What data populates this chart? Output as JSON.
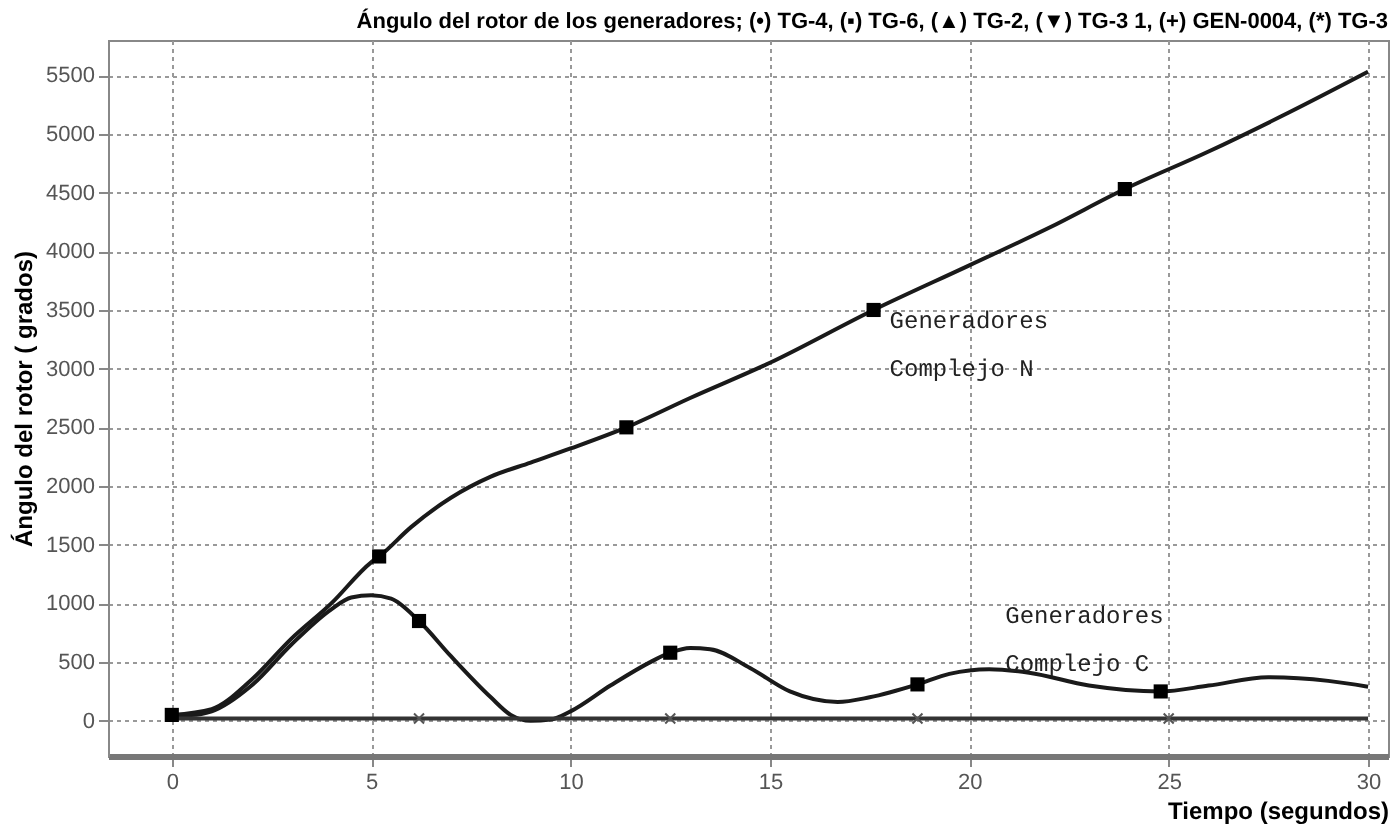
{
  "chart_data": {
    "type": "line",
    "title": "Ángulo del rotor de los generadores; (•) TG-4, (▪) TG-6, (▲) TG-2, (▼) TG-3  1, (+) GEN-0004, (*) TG-3",
    "xlabel": "Tiempo (segundos)",
    "ylabel": "Ángulo del rotor ( grados)",
    "xlim": [
      -1.6,
      30.5
    ],
    "ylim": [
      -300,
      5800
    ],
    "xticks": [
      0,
      5,
      10,
      15,
      20,
      25,
      30
    ],
    "yticks": [
      0,
      500,
      1000,
      1500,
      2000,
      2500,
      3000,
      3500,
      4000,
      4500,
      5000,
      5500
    ],
    "grid": true,
    "line_style": "solid",
    "marker": "none",
    "series": [
      {
        "color": "#1a1a1a",
        "x": [
          0,
          1,
          2,
          3,
          4,
          5,
          5.2,
          6,
          7,
          8,
          9,
          10,
          11.4,
          13,
          15,
          17.6,
          20,
          22,
          23.9,
          26,
          28,
          30
        ],
        "values": [
          50,
          100,
          350,
          700,
          1000,
          1350,
          1400,
          1650,
          1900,
          2080,
          2200,
          2320,
          2500,
          2750,
          3050,
          3500,
          3880,
          4200,
          4530,
          4850,
          5180,
          5530
        ]
      },
      {
        "color": "#1a1a1a",
        "x": [
          0,
          0.5,
          1,
          2,
          3,
          4,
          4.5,
          5,
          5.5,
          6.2,
          7,
          8,
          8.5,
          9,
          9.5,
          10,
          11,
          12,
          12.5,
          13,
          13.5,
          14.5,
          15.5,
          16.7,
          17.5,
          18.7,
          19.5,
          20.5,
          21.5,
          23,
          24.8,
          26,
          27.5,
          29,
          30
        ],
        "values": [
          50,
          50,
          80,
          300,
          650,
          950,
          1050,
          1070,
          1040,
          850,
          550,
          200,
          50,
          0,
          10,
          80,
          300,
          500,
          580,
          620,
          610,
          450,
          250,
          160,
          200,
          310,
          400,
          440,
          410,
          300,
          250,
          300,
          370,
          340,
          290
        ]
      },
      {
        "color": "#333333",
        "x": [
          0,
          30
        ],
        "values": [
          20,
          20
        ]
      },
      {
        "type": "scatter",
        "marker": "square",
        "color": "#000000",
        "x": [
          0,
          5.2,
          11.4,
          17.6,
          23.9
        ],
        "values": [
          50,
          1400,
          2500,
          3500,
          4530
        ]
      },
      {
        "type": "scatter",
        "marker": "square",
        "color": "#000000",
        "x": [
          6.2,
          12.5,
          18.7,
          24.8
        ],
        "values": [
          850,
          580,
          310,
          250
        ]
      },
      {
        "type": "scatter",
        "marker": "cross",
        "color": "#555555",
        "x": [
          6.2,
          12.5,
          18.7,
          25
        ],
        "values": [
          20,
          20,
          20,
          20
        ]
      }
    ],
    "annotations": [
      {
        "text": "Generadores\nComplejo N",
        "x": 17.6,
        "y": 3500
      },
      {
        "text": "Generadores\nComplejo C",
        "x": 20.5,
        "y": 440
      }
    ]
  }
}
